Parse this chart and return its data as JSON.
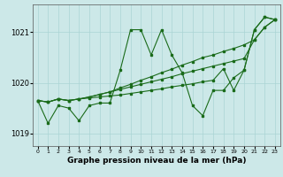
{
  "x": [
    0,
    1,
    2,
    3,
    4,
    5,
    6,
    7,
    8,
    9,
    10,
    11,
    12,
    13,
    14,
    15,
    16,
    17,
    18,
    19,
    20,
    21,
    22,
    23
  ],
  "line1": [
    1019.65,
    1019.2,
    1019.55,
    1019.5,
    1019.25,
    1019.55,
    1019.6,
    1019.6,
    1020.25,
    1021.05,
    1021.05,
    1020.55,
    1021.05,
    1020.55,
    1020.2,
    1019.55,
    1019.35,
    1019.85,
    1019.85,
    1020.1,
    1020.25,
    1021.05,
    1021.3,
    1021.25
  ],
  "line2_trend": [
    1019.65,
    1019.62,
    1019.68,
    1019.65,
    1019.68,
    1019.72,
    1019.77,
    1019.82,
    1019.9,
    1019.97,
    1020.05,
    1020.12,
    1020.2,
    1020.27,
    1020.35,
    1020.42,
    1020.5,
    1020.55,
    1020.62,
    1020.68,
    1020.75,
    1020.85,
    1021.1,
    1021.25
  ],
  "line3_trend": [
    1019.65,
    1019.62,
    1019.68,
    1019.65,
    1019.68,
    1019.72,
    1019.77,
    1019.82,
    1019.87,
    1019.92,
    1019.97,
    1020.02,
    1020.07,
    1020.12,
    1020.18,
    1020.23,
    1020.28,
    1020.33,
    1020.38,
    1020.43,
    1020.48,
    1020.85,
    1021.1,
    1021.25
  ],
  "line4_lower": [
    1019.65,
    1019.62,
    1019.68,
    1019.65,
    1019.68,
    1019.7,
    1019.72,
    1019.74,
    1019.76,
    1019.79,
    1019.82,
    1019.85,
    1019.88,
    1019.92,
    1019.95,
    1019.98,
    1020.02,
    1020.05,
    1020.28,
    1019.85,
    1020.25,
    1021.05,
    1021.3,
    1021.25
  ],
  "bg_color": "#cce8e8",
  "grid_color": "#aad4d4",
  "line_color": "#1a6b1a",
  "xlabel": "Graphe pression niveau de la mer (hPa)",
  "ylim": [
    1018.75,
    1021.55
  ],
  "xlim": [
    -0.5,
    23.5
  ],
  "yticks": [
    1019,
    1020,
    1021
  ],
  "xticks": [
    0,
    1,
    2,
    3,
    4,
    5,
    6,
    7,
    8,
    9,
    10,
    11,
    12,
    13,
    14,
    15,
    16,
    17,
    18,
    19,
    20,
    21,
    22,
    23
  ],
  "marker_size": 2.0,
  "line_width": 0.8
}
